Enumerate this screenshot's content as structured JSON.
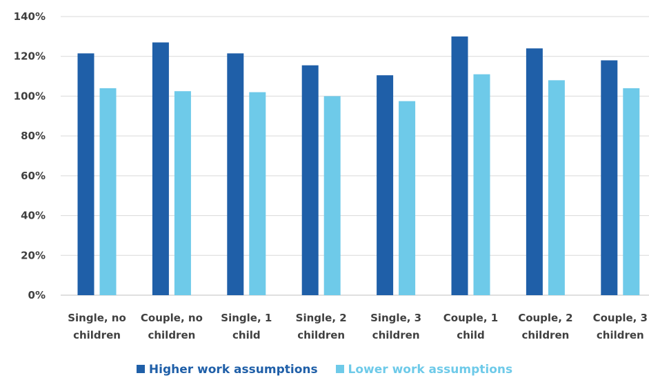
{
  "chart_data": {
    "type": "bar",
    "categories": [
      [
        "Single, no",
        "children"
      ],
      [
        "Couple, no",
        "children"
      ],
      [
        "Single, 1",
        "child"
      ],
      [
        "Single, 2",
        "children"
      ],
      [
        "Single, 3",
        "children"
      ],
      [
        "Couple, 1",
        "child"
      ],
      [
        "Couple, 2",
        "children"
      ],
      [
        "Couple, 3",
        "children"
      ]
    ],
    "series": [
      {
        "name": "Higher work assumptions",
        "color": "#1f5fa8",
        "values": [
          121.5,
          127,
          121.5,
          115.5,
          110.5,
          130,
          124,
          118
        ]
      },
      {
        "name": "Lower work assumptions",
        "color": "#6ecae9",
        "values": [
          104,
          102.5,
          102,
          100,
          97.5,
          111,
          108,
          104
        ]
      }
    ],
    "yticks": [
      "0%",
      "20%",
      "40%",
      "60%",
      "80%",
      "100%",
      "120%",
      "140%"
    ],
    "ylim": [
      0,
      140
    ],
    "grid": true,
    "legend_position": "bottom"
  }
}
